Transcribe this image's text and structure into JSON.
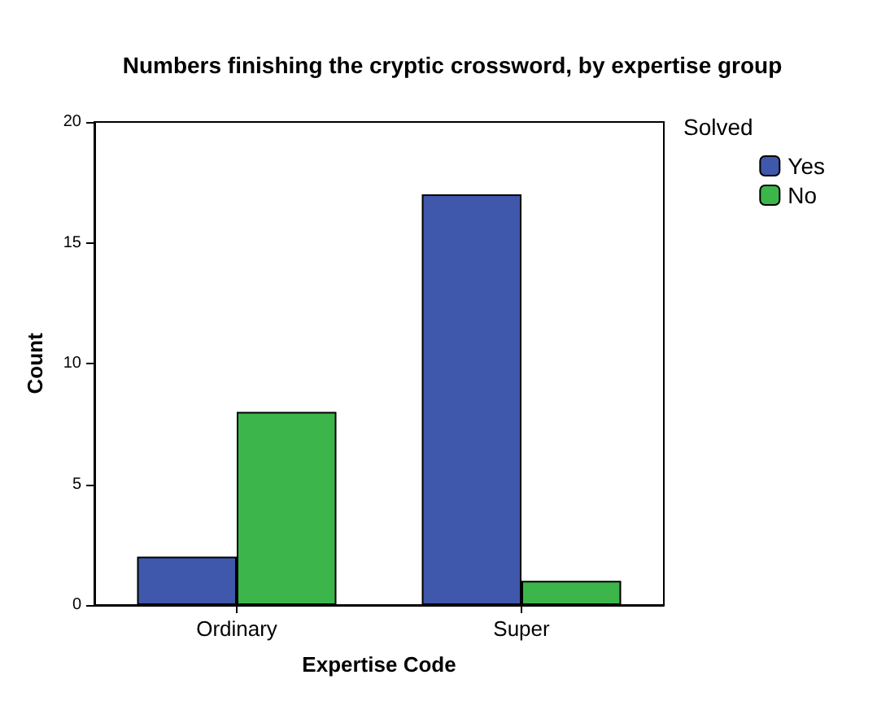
{
  "chart_data": {
    "type": "bar",
    "title": "Numbers finishing the cryptic crossword, by expertise group",
    "xlabel": "Expertise Code",
    "ylabel": "Count",
    "legend_title": "Solved",
    "categories": [
      "Ordinary",
      "Super"
    ],
    "series": [
      {
        "name": "Yes",
        "color": "#3f58ab",
        "values": [
          2,
          17
        ]
      },
      {
        "name": "No",
        "color": "#3cb54a",
        "values": [
          8,
          1
        ]
      }
    ],
    "ylim": [
      0,
      20
    ],
    "yticks": [
      0,
      5,
      10,
      15,
      20
    ],
    "grid": false,
    "legend": "top right"
  }
}
